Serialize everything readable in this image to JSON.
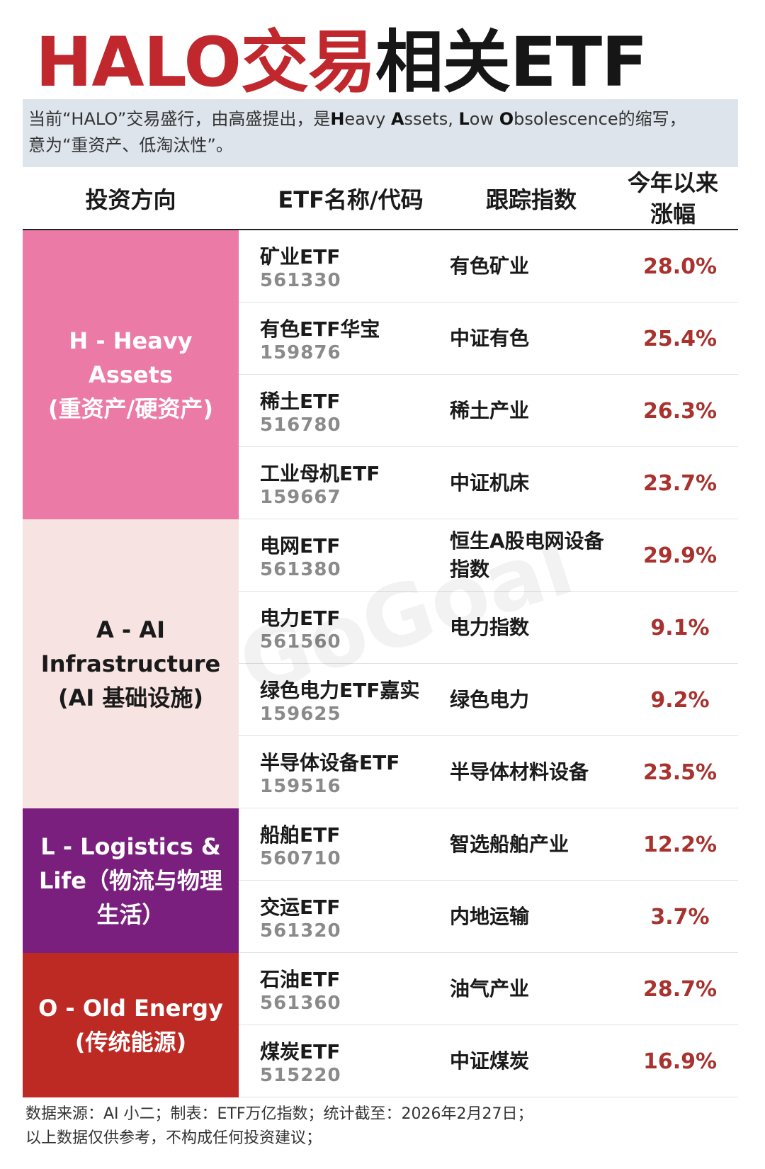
{
  "title": {
    "part1": "HALO交易",
    "part2": "相关ETF"
  },
  "intro": {
    "line1_a": "当前“HALO”交易盛行，由高盛提出，是",
    "H": "H",
    "eavy": "eavy ",
    "A": "A",
    "ssets": "ssets, ",
    "L": "L",
    "ow": "ow ",
    "O": "O",
    "bsolescence": "bsolescence的缩写，",
    "line2": "意为“重资产、低淘汰性”。"
  },
  "headers": {
    "direction": "投资方向",
    "etf": "ETF名称/代码",
    "index": "跟踪指数",
    "ytd_line1": "今年以来",
    "ytd_line2": "涨幅"
  },
  "groups": [
    {
      "line1": "H - Heavy Assets",
      "line2": "(重资产/硬资产)",
      "line3": "",
      "bg": "#ec7aa6",
      "fg": "#ffffff"
    },
    {
      "line1": "A - AI",
      "line2": "Infrastructure",
      "line3": "(AI 基础设施)",
      "bg": "#f7e4e2",
      "fg": "#1a1a1a"
    },
    {
      "line1": "L - Logistics &",
      "line2": "Life（物流与物理",
      "line3": "生活）",
      "bg": "#7a1f7e",
      "fg": "#ffffff"
    },
    {
      "line1": "O - Old Energy",
      "line2": "(传统能源)",
      "line3": "",
      "bg": "#bd2a24",
      "fg": "#ffffff"
    }
  ],
  "rows": [
    {
      "name": "矿业ETF",
      "code": "561330",
      "index": "有色矿业",
      "ytd": "28.0%"
    },
    {
      "name": "有色ETF华宝",
      "code": "159876",
      "index": "中证有色",
      "ytd": "25.4%"
    },
    {
      "name": "稀土ETF",
      "code": "516780",
      "index": "稀土产业",
      "ytd": "26.3%"
    },
    {
      "name": "工业母机ETF",
      "code": "159667",
      "index": "中证机床",
      "ytd": "23.7%"
    },
    {
      "name": "电网ETF",
      "code": "561380",
      "index": "恒生A股电网设备指数",
      "ytd": "29.9%"
    },
    {
      "name": "电力ETF",
      "code": "561560",
      "index": "电力指数",
      "ytd": "9.1%"
    },
    {
      "name": "绿色电力ETF嘉实",
      "code": "159625",
      "index": "绿色电力",
      "ytd": "9.2%"
    },
    {
      "name": "半导体设备ETF",
      "code": "159516",
      "index": "半导体材料设备",
      "ytd": "23.5%"
    },
    {
      "name": "船舶ETF",
      "code": "560710",
      "index": "智选船舶产业",
      "ytd": "12.2%"
    },
    {
      "name": "交运ETF",
      "code": "561320",
      "index": "内地运输",
      "ytd": "3.7%"
    },
    {
      "name": "石油ETF",
      "code": "561360",
      "index": "油气产业",
      "ytd": "28.7%"
    },
    {
      "name": "煤炭ETF",
      "code": "515220",
      "index": "中证煤炭",
      "ytd": "16.9%"
    }
  ],
  "ytd_color": "#a8322e",
  "watermark": "GoGoal",
  "footer": {
    "line1": "数据来源：AI 小二；制表：ETF万亿指数；统计截至：2026年2月27日；",
    "line2": "以上数据仅供参考，不构成任何投资建议；"
  }
}
